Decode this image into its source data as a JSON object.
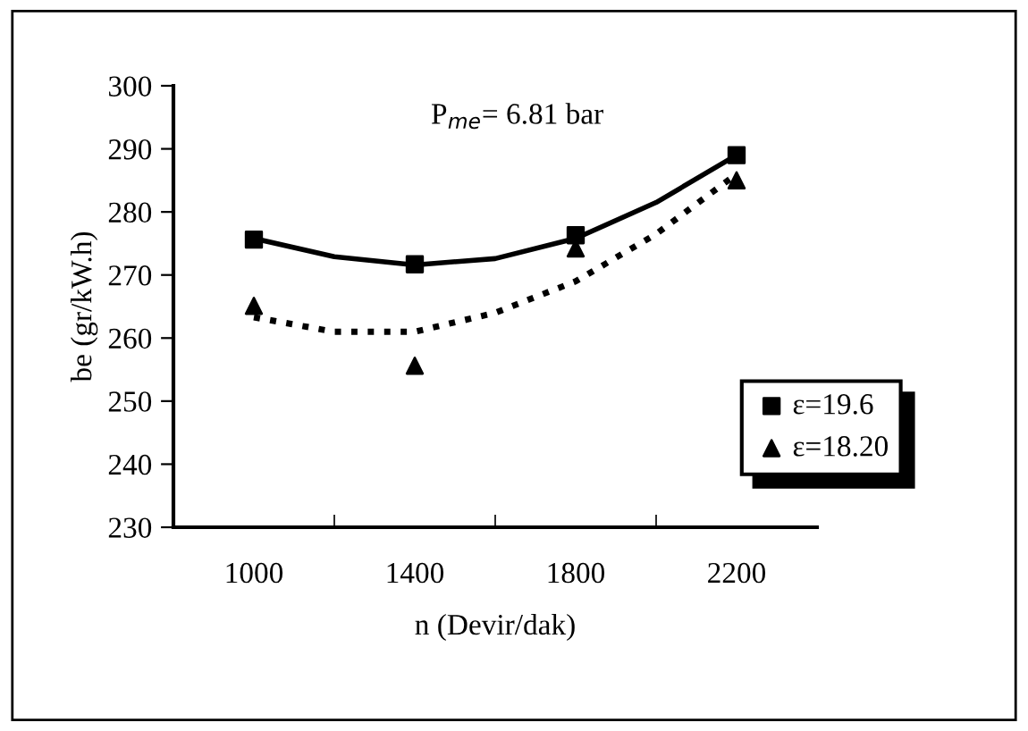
{
  "chart_data": {
    "type": "scatter",
    "xlabel": "n (Devir/dak)",
    "ylabel": "be (gr/kW.h)",
    "annotations": [
      "P$_{me}$= 6.81 bar"
    ],
    "xlim": [
      800,
      2400
    ],
    "xticks": [
      1000,
      {
        "value": 1200,
        "label": null
      },
      1400,
      {
        "value": 1600,
        "label": null
      },
      1800,
      {
        "value": 2000,
        "label": null
      },
      2200
    ],
    "ylim": [
      230,
      300
    ],
    "yticks": [
      230,
      240,
      250,
      260,
      270,
      280,
      290,
      300
    ],
    "grid": false,
    "legend": "bottom right",
    "series": [
      {
        "name": "ε=19.6",
        "color": "#000000",
        "marker": "square",
        "x": [
          1000,
          1400,
          1800,
          2200
        ],
        "values": [
          275.6,
          271.7,
          276.3,
          289
        ]
      },
      {
        "name": "ε=18.20",
        "color": "#000000",
        "marker": "triangle",
        "x": [
          1000,
          1400,
          1800,
          2200
        ],
        "values": [
          265.1,
          255.6,
          274.2,
          285
        ]
      },
      {
        "type": "line",
        "color": "#000000",
        "line_style": "solid",
        "x": [
          1000,
          1200,
          1400,
          1600,
          1800,
          2000,
          2200
        ],
        "values": [
          275.8,
          272.9,
          271.6,
          272.6,
          275.8,
          281.5,
          289.0
        ]
      },
      {
        "type": "line",
        "color": "#000000",
        "line_style": "dotted",
        "x": [
          1000,
          1200,
          1400,
          1600,
          1800,
          2000,
          2200
        ],
        "values": [
          263.3,
          261.0,
          261.0,
          264.0,
          269.0,
          276.5,
          286.0
        ]
      }
    ]
  }
}
